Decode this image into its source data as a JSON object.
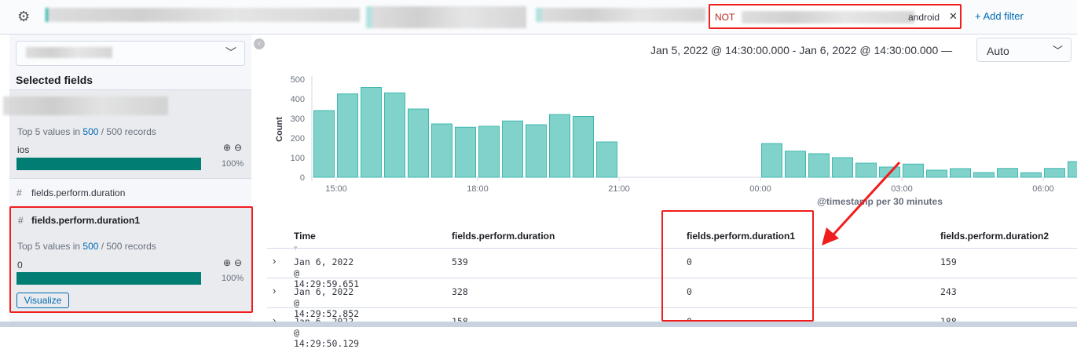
{
  "filter_bar": {
    "settings_icon": "gear-icon",
    "negated_filter": {
      "prefix": "NOT",
      "suffix": "android",
      "remove_icon": "close-icon"
    },
    "add_filter_label": "+ Add filter"
  },
  "sidebar": {
    "collapse_icon": "chevron-left-circle-icon",
    "index_select_icon": "chevron-down-icon",
    "selected_fields_title": "Selected fields",
    "fields": [
      {
        "type_icon": "",
        "name": "",
        "details": {
          "prefix": "Top 5 values in ",
          "count": "500",
          "suffix": " / 500 records",
          "top_value": "ios",
          "percent": "100%",
          "fraction": 1.0
        }
      },
      {
        "type_icon": "#",
        "name": "fields.perform.duration"
      },
      {
        "type_icon": "#",
        "name": "fields.perform.duration1",
        "details": {
          "prefix": "Top 5 values in ",
          "count": "500",
          "suffix": " / 500 records",
          "top_value": "0",
          "percent": "100%",
          "fraction": 1.0
        },
        "visualize_label": "Visualize"
      }
    ]
  },
  "time_range": {
    "label": "Jan 5, 2022 @ 14:30:00.000 - Jan 6, 2022 @ 14:30:00.000 —",
    "interval": "Auto"
  },
  "chart_data": {
    "type": "bar",
    "ylabel": "Count",
    "xlabel": "@timestamp per 30 minutes",
    "ylim": [
      0,
      500
    ],
    "yticks": [
      "0",
      "100",
      "200",
      "300",
      "400",
      "500"
    ],
    "xticks": [
      "15:00",
      "18:00",
      "21:00",
      "00:00",
      "03:00",
      "06:00"
    ],
    "color": "#82d2cc",
    "x": [
      "14:30",
      "15:00",
      "15:30",
      "16:00",
      "16:30",
      "17:00",
      "17:30",
      "18:00",
      "18:30",
      "19:00",
      "19:30",
      "20:00",
      "20:30",
      "00:00",
      "00:30",
      "01:00",
      "01:30",
      "02:00",
      "02:30",
      "03:00",
      "03:30",
      "04:00",
      "04:30",
      "05:00",
      "05:30",
      "06:00",
      "06:30"
    ],
    "values": [
      340,
      425,
      458,
      430,
      348,
      272,
      255,
      260,
      287,
      268,
      320,
      310,
      180,
      172,
      133,
      120,
      100,
      72,
      52,
      67,
      36,
      44,
      24,
      45,
      23,
      45,
      80
    ]
  },
  "table": {
    "columns": [
      "Time",
      "fields.perform.duration",
      "fields.perform.duration1",
      "fields.perform.duration2"
    ],
    "rows": [
      [
        "Jan 6, 2022 @ 14:29:59.651",
        "539",
        "0",
        "159"
      ],
      [
        "Jan 6, 2022 @ 14:29:52.852",
        "328",
        "0",
        "243"
      ],
      [
        "Jan 6, 2022 @ 14:29:50.129",
        "158",
        "0",
        "188"
      ]
    ]
  }
}
